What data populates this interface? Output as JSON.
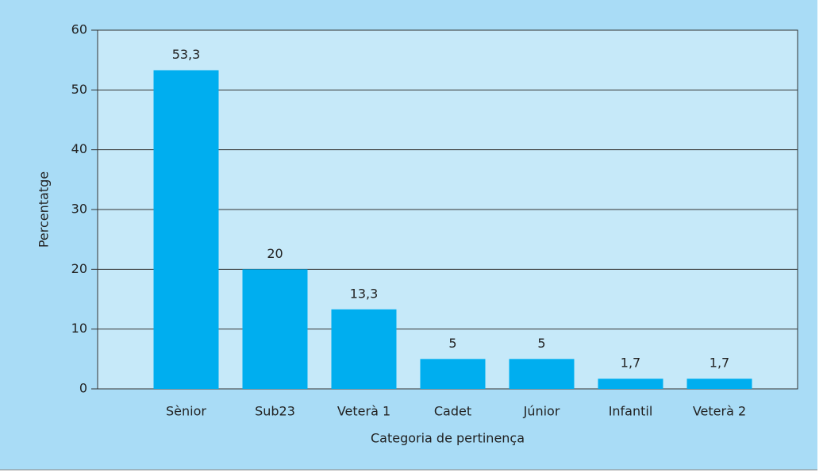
{
  "chart_data": {
    "type": "bar",
    "categories": [
      "Sènior",
      "Sub23",
      "Veterà 1",
      "Cadet",
      "Júnior",
      "Infantil",
      "Veterà 2"
    ],
    "values": [
      53.3,
      20,
      13.3,
      5,
      5,
      1.7,
      1.7
    ],
    "value_labels": [
      "53,3",
      "20",
      "13,3",
      "5",
      "5",
      "1,7",
      "1,7"
    ],
    "color": "#00aeef",
    "x_label": "Categoria de pertinença",
    "y_label": "Percentatge",
    "ylim": [
      0,
      60
    ],
    "yticks": [
      0,
      10,
      20,
      30,
      40,
      50,
      60
    ],
    "grid": true
  }
}
